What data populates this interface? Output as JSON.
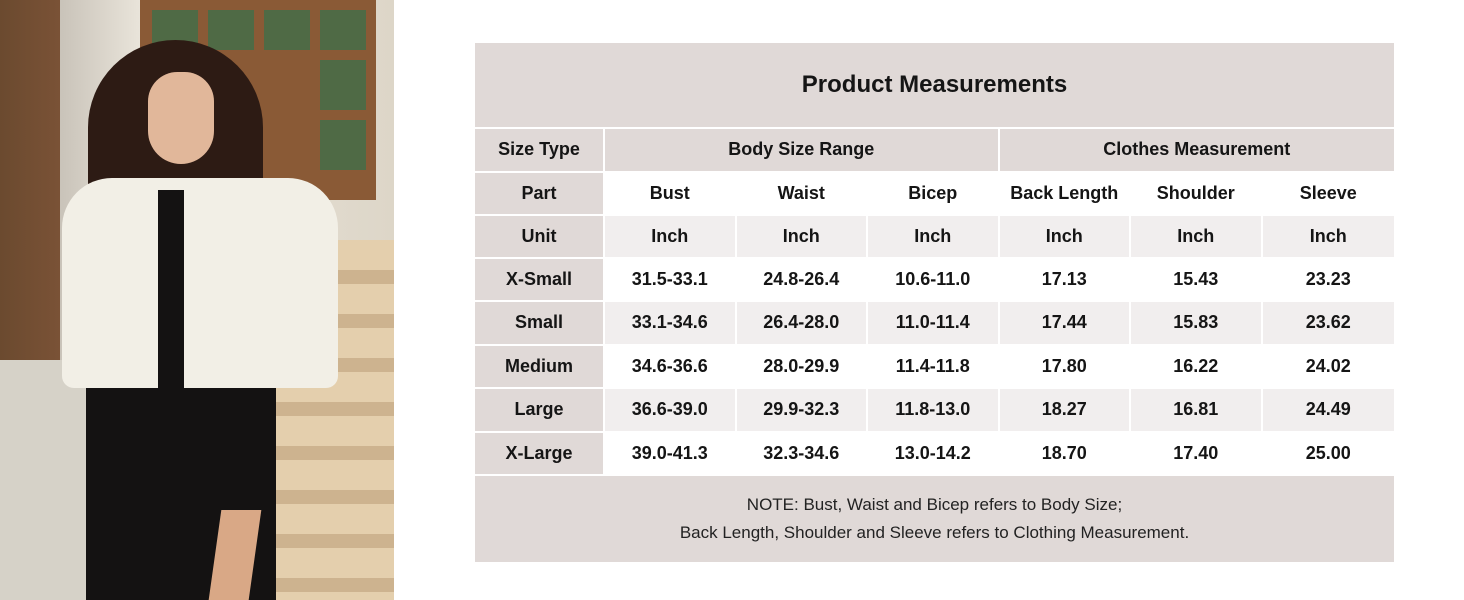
{
  "photo": {
    "description_icon": "model-photo"
  },
  "table": {
    "title": "Product Measurements",
    "group_header": {
      "label": "Size Type",
      "groups": [
        "Body Size Range",
        "Clothes Measurement"
      ]
    },
    "part_row": {
      "label": "Part",
      "values": [
        "Bust",
        "Waist",
        "Bicep",
        "Back Length",
        "Shoulder",
        "Sleeve"
      ]
    },
    "unit_row": {
      "label": "Unit",
      "values": [
        "Inch",
        "Inch",
        "Inch",
        "Inch",
        "Inch",
        "Inch"
      ]
    },
    "rows": [
      {
        "size": "X-Small",
        "values": [
          "31.5-33.1",
          "24.8-26.4",
          "10.6-11.0",
          "17.13",
          "15.43",
          "23.23"
        ]
      },
      {
        "size": "Small",
        "values": [
          "33.1-34.6",
          "26.4-28.0",
          "11.0-11.4",
          "17.44",
          "15.83",
          "23.62"
        ]
      },
      {
        "size": "Medium",
        "values": [
          "34.6-36.6",
          "28.0-29.9",
          "11.4-11.8",
          "17.80",
          "16.22",
          "24.02"
        ]
      },
      {
        "size": "Large",
        "values": [
          "36.6-39.0",
          "29.9-32.3",
          "11.8-13.0",
          "18.27",
          "16.81",
          "24.49"
        ]
      },
      {
        "size": "X-Large",
        "values": [
          "39.0-41.3",
          "32.3-34.6",
          "13.0-14.2",
          "18.70",
          "17.40",
          "25.00"
        ]
      }
    ],
    "note_line1": "NOTE: Bust, Waist and Bicep refers to Body Size;",
    "note_line2": "Back Length, Shoulder and Sleeve refers to Clothing Measurement."
  },
  "colors": {
    "header_bg": "#e0d9d7",
    "stripe_bg": "#f1eeee",
    "text": "#151515"
  }
}
